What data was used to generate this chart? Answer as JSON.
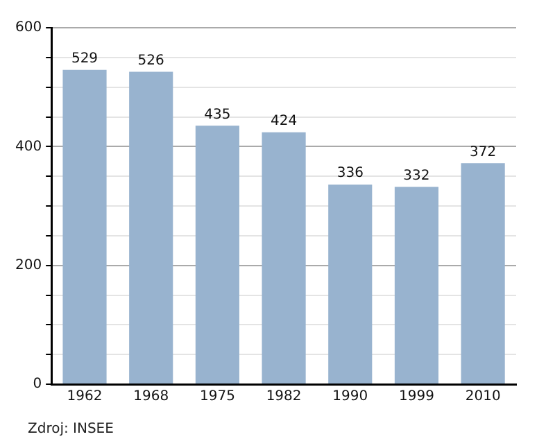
{
  "chart_data": {
    "type": "bar",
    "categories": [
      "1962",
      "1968",
      "1975",
      "1982",
      "1990",
      "1999",
      "2010"
    ],
    "values": [
      529,
      526,
      435,
      424,
      336,
      332,
      372
    ],
    "color": "#98b3cf",
    "ylim": [
      0,
      600
    ],
    "yticks": [
      0,
      {
        "value": 50,
        "label": null
      },
      {
        "value": 100,
        "label": null
      },
      {
        "value": 150,
        "label": null
      },
      200,
      {
        "value": 250,
        "label": null
      },
      {
        "value": 300,
        "label": null
      },
      {
        "value": 350,
        "label": null
      },
      400,
      {
        "value": 450,
        "label": null
      },
      {
        "value": 500,
        "label": null
      },
      {
        "value": 550,
        "label": null
      },
      600
    ],
    "grid": "y",
    "data_labels": true,
    "legend": false,
    "annotations": [
      "Zdroj: INSEE"
    ]
  }
}
